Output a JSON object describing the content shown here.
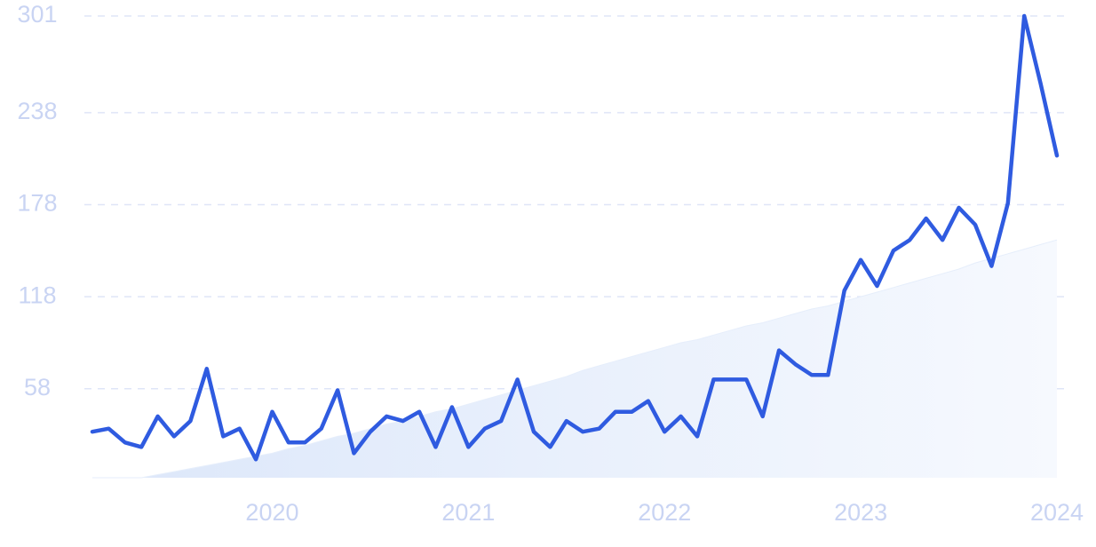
{
  "chart_data": {
    "type": "line",
    "categories": [
      null,
      null,
      null,
      null,
      null,
      null,
      null,
      null,
      null,
      null,
      null,
      "2020",
      null,
      null,
      null,
      null,
      null,
      null,
      null,
      null,
      null,
      null,
      null,
      "2021",
      null,
      null,
      null,
      null,
      null,
      null,
      null,
      null,
      null,
      null,
      null,
      "2022",
      null,
      null,
      null,
      null,
      null,
      null,
      null,
      null,
      null,
      null,
      null,
      "2023",
      null,
      null,
      null,
      null,
      null,
      null,
      null,
      null,
      null,
      null,
      null,
      "2024"
    ],
    "series": [
      {
        "color": "#e6eefb",
        "area": true,
        "values": [
          0,
          0,
          0,
          0,
          2,
          4,
          6,
          8,
          10,
          12,
          14,
          16,
          19,
          21,
          24,
          27,
          29,
          32,
          35,
          37,
          40,
          43,
          45,
          48,
          51,
          54,
          57,
          60,
          63,
          66,
          70,
          73,
          76,
          79,
          82,
          85,
          88,
          90,
          93,
          96,
          99,
          101,
          104,
          107,
          110,
          112,
          115,
          118,
          121,
          124,
          127,
          130,
          133,
          136,
          140,
          143,
          146,
          149,
          152,
          155
        ]
      },
      {
        "color": "#2f5be0",
        "values": [
          30,
          32,
          23,
          20,
          40,
          27,
          37,
          71,
          27,
          32,
          12,
          43,
          23,
          23,
          32,
          57,
          16,
          30,
          40,
          37,
          43,
          20,
          46,
          20,
          32,
          37,
          64,
          30,
          20,
          37,
          30,
          32,
          43,
          43,
          50,
          30,
          40,
          27,
          64,
          64,
          64,
          40,
          83,
          74,
          67,
          67,
          122,
          142,
          125,
          148,
          155,
          169,
          155,
          176,
          165,
          138,
          179,
          301,
          257,
          210
        ]
      }
    ],
    "ylim": [
      0,
      301
    ],
    "yticks": [
      58,
      118,
      178,
      238,
      301
    ],
    "grid": true
  }
}
